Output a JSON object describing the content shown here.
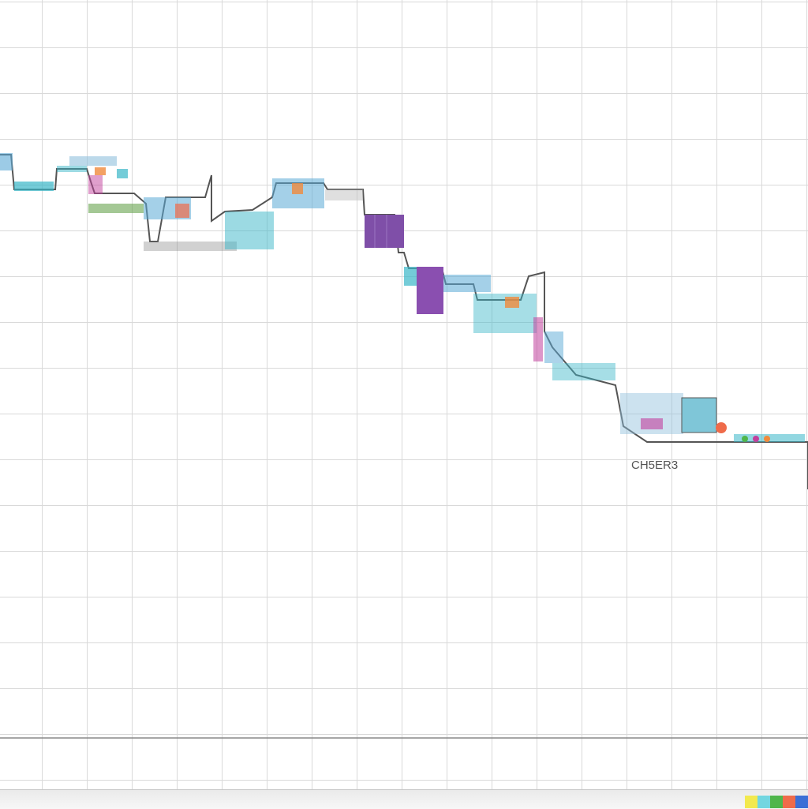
{
  "header": {
    "line1": "",
    "line2": "",
    "line3": "",
    "line4": "",
    "line5": "",
    "side_title": ""
  },
  "flow_labels": {
    "final_step": "CH5ER3"
  },
  "colors": {
    "grid": "#d9d9d9",
    "accent_purple": "#7f4fa8",
    "accent_teal": "#39b6c8",
    "accent_blue": "#5aa9d6",
    "accent_magenta": "#c13f9c",
    "accent_orange": "#f08a3c",
    "accent_green": "#5a9a3e",
    "line": "#555555"
  },
  "footer": {
    "swatches": [
      "#f2e94e",
      "#72d6e0",
      "#4fb64b",
      "#ef6b4a",
      "#3b6fd6"
    ]
  }
}
